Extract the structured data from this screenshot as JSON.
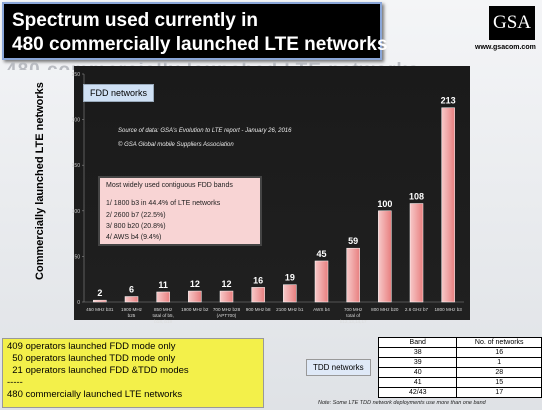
{
  "title": {
    "line1": "Spectrum used currently in",
    "line2": "480 commercially launched LTE networks",
    "shadow": "480 commercially launched LTE networks"
  },
  "logo": {
    "text": "GSA",
    "url": "www.gsacom.com"
  },
  "chart_data": {
    "type": "bar",
    "panel_label": "FDD networks",
    "source": "Source of data: GSA's Evolution to LTE report  - January 26, 2016",
    "copyright": "© GSA Global mobile Suppliers Association",
    "ylabel": "Commercially launched LTE networks",
    "ylim": [
      0,
      250
    ],
    "yticks": [
      0,
      50,
      100,
      150,
      200,
      250
    ],
    "categories": [
      [
        "450 MHz b31"
      ],
      [
        "1900 MHz",
        "b25"
      ],
      [
        "850 MHz",
        "total of b5,",
        "b18, b19"
      ],
      [
        "1900 MHz b2"
      ],
      [
        "700 MHz b28",
        "(APT700)"
      ],
      [
        "900 MHz b8"
      ],
      [
        "2100 MHz b1"
      ],
      [
        "AWS b4"
      ],
      [
        "700 MHz",
        "total of",
        "b12,13,14,17"
      ],
      [
        "800 MHz b20"
      ],
      [
        "2.6 GHz b7"
      ],
      [
        "1800 MHz b3"
      ]
    ],
    "values": [
      2,
      6,
      11,
      12,
      12,
      16,
      19,
      45,
      59,
      100,
      108,
      213
    ],
    "bar_color": "#e87f7f",
    "annotation": {
      "title": "Most widely used contiguous FDD bands",
      "items": [
        "1/ 1800 b3 in 44.4% of LTE networks",
        "2/ 2600 b7 (22.5%)",
        "3/   800 b20 (20.8%)",
        "4/ AWS b4 (9.4%)"
      ]
    }
  },
  "operators": {
    "lines": [
      "409 operators launched FDD mode only",
      "  50 operators launched TDD mode only",
      "  21 operators launched FDD &TDD modes",
      "-----",
      "480 commercially launched LTE networks"
    ]
  },
  "tdd": {
    "label": "TDD networks",
    "headers": [
      "Band",
      "No. of networks"
    ],
    "rows": [
      [
        "38",
        "16"
      ],
      [
        "39",
        "1"
      ],
      [
        "40",
        "28"
      ],
      [
        "41",
        "15"
      ],
      [
        "42/43",
        "17"
      ]
    ]
  },
  "note": "Note: Some LTE TDD network deployments use more than one band"
}
